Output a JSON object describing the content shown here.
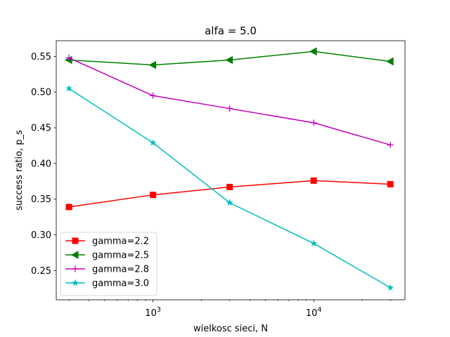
{
  "chart_data": {
    "type": "line",
    "title": "alfa = 5.0",
    "xlabel": "wielkosc sieci, N",
    "ylabel": "success ratio, p_s",
    "xscale": "log",
    "xlim": [
      250,
      37000
    ],
    "ylim": [
      0.209,
      0.572
    ],
    "x": [
      300,
      1000,
      3000,
      10000,
      30000
    ],
    "yticks": [
      0.25,
      0.3,
      0.35,
      0.4,
      0.45,
      0.5,
      0.55
    ],
    "ytick_labels": [
      "0.25",
      "0.30",
      "0.35",
      "0.40",
      "0.45",
      "0.50",
      "0.55"
    ],
    "xticks": [
      1000,
      10000
    ],
    "xtick_labels": [
      {
        "base": "10",
        "exp": "3"
      },
      {
        "base": "10",
        "exp": "4"
      }
    ],
    "legend_position": "lower-left",
    "series": [
      {
        "name": "gamma=2.2",
        "color": "#ff0000",
        "marker": "square",
        "values": [
          0.339,
          0.356,
          0.367,
          0.376,
          0.371
        ]
      },
      {
        "name": "gamma=2.5",
        "color": "#008000",
        "marker": "triangle-left",
        "values": [
          0.545,
          0.538,
          0.545,
          0.557,
          0.543
        ]
      },
      {
        "name": "gamma=2.8",
        "color": "#bf00bf",
        "marker": "plus",
        "values": [
          0.548,
          0.495,
          0.477,
          0.457,
          0.426
        ]
      },
      {
        "name": "gamma=3.0",
        "color": "#00bfbf",
        "marker": "star",
        "values": [
          0.505,
          0.429,
          0.345,
          0.288,
          0.226
        ]
      }
    ]
  }
}
